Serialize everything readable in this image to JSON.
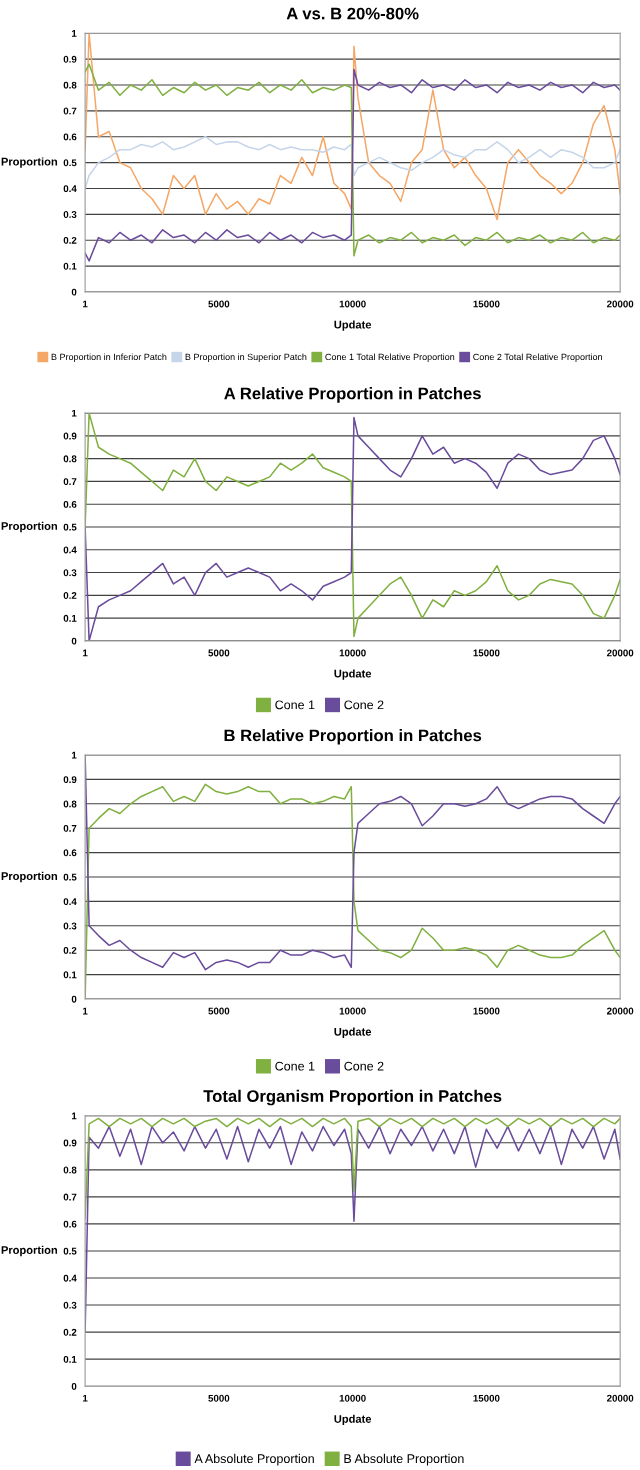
{
  "chart_data": [
    {
      "type": "line",
      "title": "A vs. B 20%-80%",
      "xlabel": "Update",
      "ylabel": "Proportion",
      "xlim": [
        1,
        20000
      ],
      "xticks": [
        1,
        5000,
        10000,
        15000,
        20000
      ],
      "ylim": [
        0,
        1
      ],
      "yticks": [
        0,
        0.1,
        0.2,
        0.3,
        0.4,
        0.5,
        0.6,
        0.7,
        0.8,
        0.9,
        1
      ],
      "grid": "y",
      "legend": "bottom",
      "x": [
        1,
        150,
        500,
        900,
        1300,
        1700,
        2100,
        2500,
        2900,
        3300,
        3700,
        4100,
        4500,
        4900,
        5300,
        5700,
        6100,
        6500,
        6900,
        7300,
        7700,
        8100,
        8500,
        8900,
        9300,
        9700,
        9950,
        10050,
        10200,
        10600,
        11000,
        11400,
        11800,
        12200,
        12600,
        13000,
        13400,
        13800,
        14200,
        14600,
        15000,
        15400,
        15800,
        16200,
        16600,
        17000,
        17400,
        17800,
        18200,
        18600,
        19000,
        19400,
        19800,
        20000
      ],
      "series": [
        {
          "name": "B Proportion in Inferior Patch",
          "color": "#f5a767",
          "values": [
            0.55,
            1.0,
            0.6,
            0.62,
            0.5,
            0.48,
            0.4,
            0.36,
            0.3,
            0.45,
            0.4,
            0.45,
            0.3,
            0.38,
            0.32,
            0.35,
            0.3,
            0.36,
            0.34,
            0.45,
            0.42,
            0.52,
            0.45,
            0.6,
            0.42,
            0.38,
            0.32,
            0.95,
            0.75,
            0.5,
            0.45,
            0.42,
            0.35,
            0.5,
            0.55,
            0.78,
            0.55,
            0.48,
            0.52,
            0.45,
            0.4,
            0.28,
            0.5,
            0.55,
            0.5,
            0.45,
            0.42,
            0.38,
            0.42,
            0.5,
            0.65,
            0.72,
            0.55,
            0.38
          ]
        },
        {
          "name": "B Proportion in Superior Patch",
          "color": "#c5d5ea",
          "values": [
            0.4,
            0.45,
            0.5,
            0.52,
            0.55,
            0.55,
            0.57,
            0.56,
            0.58,
            0.55,
            0.56,
            0.58,
            0.6,
            0.57,
            0.58,
            0.58,
            0.56,
            0.55,
            0.57,
            0.55,
            0.56,
            0.55,
            0.55,
            0.54,
            0.56,
            0.55,
            0.57,
            0.45,
            0.48,
            0.5,
            0.52,
            0.5,
            0.48,
            0.47,
            0.5,
            0.52,
            0.55,
            0.53,
            0.52,
            0.55,
            0.55,
            0.58,
            0.55,
            0.5,
            0.52,
            0.55,
            0.52,
            0.55,
            0.54,
            0.52,
            0.48,
            0.48,
            0.5,
            0.55
          ]
        },
        {
          "name": "Cone 1 Total Relative Proportion",
          "color": "#80b040",
          "values": [
            0.85,
            0.88,
            0.78,
            0.81,
            0.76,
            0.8,
            0.78,
            0.82,
            0.76,
            0.79,
            0.77,
            0.81,
            0.78,
            0.8,
            0.76,
            0.79,
            0.78,
            0.81,
            0.77,
            0.8,
            0.78,
            0.82,
            0.77,
            0.79,
            0.78,
            0.8,
            0.79,
            0.14,
            0.2,
            0.22,
            0.19,
            0.21,
            0.2,
            0.23,
            0.19,
            0.21,
            0.2,
            0.22,
            0.18,
            0.21,
            0.2,
            0.23,
            0.19,
            0.21,
            0.2,
            0.22,
            0.19,
            0.21,
            0.2,
            0.23,
            0.19,
            0.21,
            0.2,
            0.22
          ]
        },
        {
          "name": "Cone 2 Total Relative Proportion",
          "color": "#6a4c9c",
          "values": [
            0.15,
            0.12,
            0.21,
            0.19,
            0.23,
            0.2,
            0.22,
            0.19,
            0.24,
            0.21,
            0.22,
            0.19,
            0.23,
            0.2,
            0.24,
            0.21,
            0.22,
            0.19,
            0.23,
            0.2,
            0.22,
            0.19,
            0.23,
            0.21,
            0.22,
            0.2,
            0.22,
            0.86,
            0.8,
            0.78,
            0.81,
            0.79,
            0.8,
            0.77,
            0.82,
            0.79,
            0.8,
            0.78,
            0.82,
            0.79,
            0.8,
            0.77,
            0.81,
            0.79,
            0.8,
            0.78,
            0.81,
            0.79,
            0.8,
            0.77,
            0.81,
            0.79,
            0.8,
            0.78
          ]
        }
      ]
    },
    {
      "type": "line",
      "title": "A Relative Proportion in Patches",
      "xlabel": "Update",
      "ylabel": "Proportion",
      "xlim": [
        1,
        20000
      ],
      "xticks": [
        1,
        5000,
        10000,
        15000,
        20000
      ],
      "ylim": [
        0,
        1
      ],
      "yticks": [
        0,
        0.1,
        0.2,
        0.3,
        0.4,
        0.5,
        0.6,
        0.7,
        0.8,
        0.9,
        1
      ],
      "grid": "y",
      "legend": "bottom",
      "x": [
        1,
        150,
        500,
        900,
        1300,
        1700,
        2100,
        2500,
        2900,
        3300,
        3700,
        4100,
        4500,
        4900,
        5300,
        5700,
        6100,
        6500,
        6900,
        7300,
        7700,
        8100,
        8500,
        8900,
        9300,
        9700,
        9950,
        10050,
        10200,
        10600,
        11000,
        11400,
        11800,
        12200,
        12600,
        13000,
        13400,
        13800,
        14200,
        14600,
        15000,
        15400,
        15800,
        16200,
        16600,
        17000,
        17400,
        17800,
        18200,
        18600,
        19000,
        19400,
        19800,
        20000
      ],
      "series": [
        {
          "name": "Cone 1",
          "color": "#80b040",
          "values": [
            0.5,
            1.0,
            0.85,
            0.82,
            0.8,
            0.78,
            0.74,
            0.7,
            0.66,
            0.75,
            0.72,
            0.8,
            0.7,
            0.66,
            0.72,
            0.7,
            0.68,
            0.7,
            0.72,
            0.78,
            0.75,
            0.78,
            0.82,
            0.76,
            0.74,
            0.72,
            0.7,
            0.02,
            0.1,
            0.15,
            0.2,
            0.25,
            0.28,
            0.2,
            0.1,
            0.18,
            0.15,
            0.22,
            0.2,
            0.22,
            0.26,
            0.33,
            0.22,
            0.18,
            0.2,
            0.25,
            0.27,
            0.26,
            0.25,
            0.2,
            0.12,
            0.1,
            0.2,
            0.27
          ]
        },
        {
          "name": "Cone 2",
          "color": "#6a4c9c",
          "values": [
            0.5,
            0.0,
            0.15,
            0.18,
            0.2,
            0.22,
            0.26,
            0.3,
            0.34,
            0.25,
            0.28,
            0.2,
            0.3,
            0.34,
            0.28,
            0.3,
            0.32,
            0.3,
            0.28,
            0.22,
            0.25,
            0.22,
            0.18,
            0.24,
            0.26,
            0.28,
            0.3,
            0.98,
            0.9,
            0.85,
            0.8,
            0.75,
            0.72,
            0.8,
            0.9,
            0.82,
            0.85,
            0.78,
            0.8,
            0.78,
            0.74,
            0.67,
            0.78,
            0.82,
            0.8,
            0.75,
            0.73,
            0.74,
            0.75,
            0.8,
            0.88,
            0.9,
            0.8,
            0.73
          ]
        }
      ]
    },
    {
      "type": "line",
      "title": "B Relative Proportion in Patches",
      "xlabel": "Update",
      "ylabel": "Proportion",
      "xlim": [
        1,
        20000
      ],
      "xticks": [
        1,
        5000,
        10000,
        15000,
        20000
      ],
      "ylim": [
        0,
        1
      ],
      "yticks": [
        0,
        0.1,
        0.2,
        0.3,
        0.4,
        0.5,
        0.6,
        0.7,
        0.8,
        0.9,
        1
      ],
      "grid": "y",
      "legend": "bottom",
      "x": [
        1,
        150,
        500,
        900,
        1300,
        1700,
        2100,
        2500,
        2900,
        3300,
        3700,
        4100,
        4500,
        4900,
        5300,
        5700,
        6100,
        6500,
        6900,
        7300,
        7700,
        8100,
        8500,
        8900,
        9300,
        9700,
        9950,
        10050,
        10200,
        10600,
        11000,
        11400,
        11800,
        12200,
        12600,
        13000,
        13400,
        13800,
        14200,
        14600,
        15000,
        15400,
        15800,
        16200,
        16600,
        17000,
        17400,
        17800,
        18200,
        18600,
        19000,
        19400,
        19800,
        20000
      ],
      "series": [
        {
          "name": "Cone 1",
          "color": "#80b040",
          "values": [
            0.0,
            0.7,
            0.74,
            0.78,
            0.76,
            0.8,
            0.83,
            0.85,
            0.87,
            0.81,
            0.83,
            0.81,
            0.88,
            0.85,
            0.84,
            0.85,
            0.87,
            0.85,
            0.85,
            0.8,
            0.82,
            0.82,
            0.8,
            0.81,
            0.83,
            0.82,
            0.87,
            0.4,
            0.28,
            0.24,
            0.2,
            0.19,
            0.17,
            0.2,
            0.29,
            0.25,
            0.2,
            0.2,
            0.21,
            0.2,
            0.18,
            0.13,
            0.2,
            0.22,
            0.2,
            0.18,
            0.17,
            0.17,
            0.18,
            0.22,
            0.25,
            0.28,
            0.2,
            0.17
          ]
        },
        {
          "name": "Cone 2",
          "color": "#6a4c9c",
          "values": [
            1.0,
            0.3,
            0.26,
            0.22,
            0.24,
            0.2,
            0.17,
            0.15,
            0.13,
            0.19,
            0.17,
            0.19,
            0.12,
            0.15,
            0.16,
            0.15,
            0.13,
            0.15,
            0.15,
            0.2,
            0.18,
            0.18,
            0.2,
            0.19,
            0.17,
            0.18,
            0.13,
            0.6,
            0.72,
            0.76,
            0.8,
            0.81,
            0.83,
            0.8,
            0.71,
            0.75,
            0.8,
            0.8,
            0.79,
            0.8,
            0.82,
            0.87,
            0.8,
            0.78,
            0.8,
            0.82,
            0.83,
            0.83,
            0.82,
            0.78,
            0.75,
            0.72,
            0.8,
            0.83
          ]
        }
      ]
    },
    {
      "type": "line",
      "title": "Total Organism Proportion in Patches",
      "xlabel": "Update",
      "ylabel": "Proportion",
      "xlim": [
        1,
        20000
      ],
      "xticks": [
        1,
        5000,
        10000,
        15000,
        20000
      ],
      "ylim": [
        0,
        1
      ],
      "yticks": [
        0,
        0.1,
        0.2,
        0.3,
        0.4,
        0.5,
        0.6,
        0.7,
        0.8,
        0.9,
        1
      ],
      "grid": "y",
      "legend": "bottom",
      "x": [
        1,
        150,
        500,
        900,
        1300,
        1700,
        2100,
        2500,
        2900,
        3300,
        3700,
        4100,
        4500,
        4900,
        5300,
        5700,
        6100,
        6500,
        6900,
        7300,
        7700,
        8100,
        8500,
        8900,
        9300,
        9700,
        9950,
        10050,
        10200,
        10600,
        11000,
        11400,
        11800,
        12200,
        12600,
        13000,
        13400,
        13800,
        14200,
        14600,
        15000,
        15400,
        15800,
        16200,
        16600,
        17000,
        17400,
        17800,
        18200,
        18600,
        19000,
        19400,
        19800,
        20000
      ],
      "series": [
        {
          "name": "A Absolute Proportion",
          "color": "#6a4c9c",
          "values": [
            0.2,
            0.92,
            0.88,
            0.96,
            0.85,
            0.95,
            0.82,
            0.96,
            0.9,
            0.94,
            0.87,
            0.96,
            0.88,
            0.95,
            0.84,
            0.96,
            0.83,
            0.95,
            0.88,
            0.96,
            0.82,
            0.94,
            0.87,
            0.96,
            0.89,
            0.95,
            0.86,
            0.61,
            0.95,
            0.88,
            0.96,
            0.86,
            0.95,
            0.89,
            0.96,
            0.87,
            0.95,
            0.86,
            0.96,
            0.81,
            0.95,
            0.88,
            0.96,
            0.87,
            0.95,
            0.86,
            0.96,
            0.82,
            0.95,
            0.88,
            0.96,
            0.84,
            0.95,
            0.84
          ]
        },
        {
          "name": "B Absolute Proportion",
          "color": "#80b040",
          "values": [
            0.62,
            0.97,
            0.99,
            0.96,
            0.99,
            0.97,
            0.99,
            0.96,
            0.99,
            0.97,
            0.99,
            0.96,
            0.98,
            0.99,
            0.96,
            0.99,
            0.97,
            0.99,
            0.96,
            0.99,
            0.97,
            0.99,
            0.96,
            0.99,
            0.97,
            0.99,
            0.96,
            0.72,
            0.98,
            0.99,
            0.96,
            0.99,
            0.97,
            0.99,
            0.96,
            0.99,
            0.97,
            0.99,
            0.96,
            0.99,
            0.97,
            0.99,
            0.96,
            0.99,
            0.97,
            0.99,
            0.96,
            0.99,
            0.97,
            0.99,
            0.96,
            0.99,
            0.97,
            0.99
          ]
        }
      ]
    }
  ]
}
